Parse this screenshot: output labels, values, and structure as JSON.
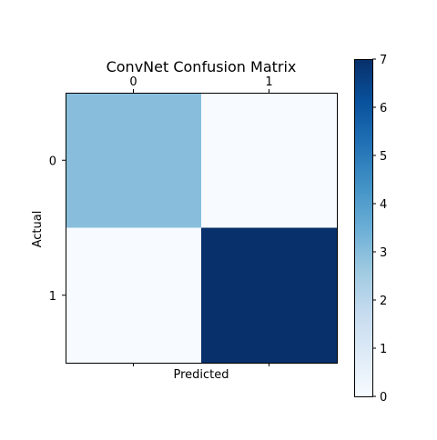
{
  "chart_data": {
    "type": "heatmap",
    "title": "ConvNet Confusion Matrix",
    "xlabel": "Predicted",
    "ylabel": "Actual",
    "x_categories": [
      "0",
      "1"
    ],
    "y_categories": [
      "0",
      "1"
    ],
    "values": [
      [
        3,
        0
      ],
      [
        0,
        7
      ]
    ],
    "colormap": "Blues",
    "color_range": [
      0,
      7
    ],
    "colorbar_ticks": [
      "0",
      "1",
      "2",
      "3",
      "4",
      "5",
      "6",
      "7"
    ],
    "x_tick_position": "top",
    "colorbar_position": "right",
    "grid": false
  }
}
